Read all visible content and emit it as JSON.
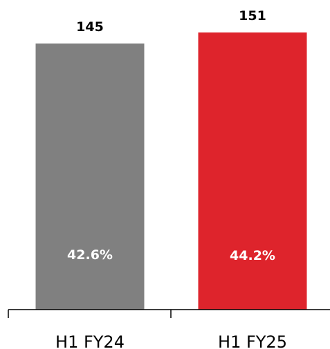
{
  "chart_data": {
    "type": "bar",
    "categories": [
      "H1 FY24",
      "H1 FY25"
    ],
    "values": [
      145,
      151
    ],
    "value_labels": [
      "145",
      "151"
    ],
    "inner_labels": [
      "42.6%",
      "44.2%"
    ],
    "colors": [
      "#808080",
      "#DE242C"
    ],
    "ylim": [
      0,
      151
    ],
    "grid": false,
    "legend": "none"
  }
}
